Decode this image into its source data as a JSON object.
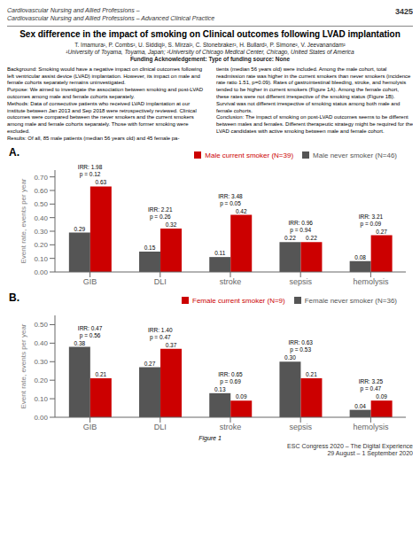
{
  "header": [
    "Cardiovascular Nursing and Allied Professions –",
    "Cardiovascular Nursing and Allied Professions – Advanced Clinical Practice",
    "3425"
  ],
  "title": "Sex difference in the impact of smoking on Clinical outcomes following LVAD implantation",
  "subtitle": [
    "T. Imamura¹, P. Combs², U. Siddiqi², S. Mirzai², C. Stonebraker², H. Bullard², P. Simone², V. Jeevanandam²",
    "¹University of Toyama, Toyama, Japan; ²University of Chicago Medical Center, Chicago, United States of America",
    "Funding Acknowledgement: Type of funding source: None"
  ],
  "body": [
    "Background: Smoking would have a negative impact on clinical outcomes following left ventricular assist device (LVAD) implantation. However, its impact on male and female cohorts separately remains uninvestigated.\nPurpose: We aimed to investigate the association between smoking and post-LVAD outcomes among male and female cohorts separately.\nMethods: Data of consecutive patients who received LVAD implantation at our institute between Jan 2013 and Sep 2018 were retrospectively reviewed. Clinical outcomes were compared between the never smokers and the current smokers among male and female cohorts separately. Those with former smoking were excluded.\nResults: Of all, 85 male patients (median 56 years old) and 45 female pa-",
    "tients (median 56 years old) were included. Among the male cohort, total readmission rate was higher in the current smokers than never smokers (incidence rate ratio 1.51, p=0.09). Rates of gastrointestinal bleeding, stroke, and hemolysis tended to be higher in current smokers (Figure 1A). Among the female cohort, these rates were not different irrespective of the smoking status (Figure 1B). Survival was not different irrespective of smoking status among both male and female cohorts.\nConclusion: The impact of smoking on post-LVAD outcomes seems to be different between males and females. Different therapeutic strategy might be required for the LVAD candidates with active smoking between male and female cohort."
  ],
  "caption": "Figure 1",
  "footer": [
    "ESC Congress 2020 – The Digital Experience",
    "29 August – 1 September 2020"
  ],
  "chart_data": [
    {
      "type": "bar",
      "title": "A.",
      "categories": [
        "GIB",
        "DLI",
        "stroke",
        "sepsis",
        "hemolysis"
      ],
      "series": [
        {
          "name": "Male never smoker (N=46)",
          "color": "#555555",
          "values": [
            0.29,
            0.15,
            0.11,
            0.22,
            0.08
          ],
          "value_labels": [
            "0.29",
            "0.15",
            "0.11",
            "0.22",
            "0.08"
          ]
        },
        {
          "name": "Male current smoker (N=39)",
          "color": "#cc0000",
          "values": [
            0.63,
            0.32,
            0.42,
            0.22,
            0.27
          ],
          "value_labels": [
            "0.63",
            "0.32",
            "0.42",
            "0.22",
            "0.27"
          ]
        }
      ],
      "annotations": [
        [
          "IRR: 1.98",
          "p = 0.12"
        ],
        [
          "IRR: 2.21",
          "p = 0.26"
        ],
        [
          "IRR: 3.48",
          "p = 0.05"
        ],
        [
          "IRR: 0.96",
          "p = 0.94"
        ],
        [
          "IRR: 3.21",
          "p = 0.09"
        ]
      ],
      "ylim": [
        0,
        0.75
      ],
      "yticks": [
        {
          "value": 0,
          "label": "0.00"
        },
        {
          "value": 0.1,
          "label": "0.10"
        },
        {
          "value": 0.2,
          "label": "0.20"
        },
        {
          "value": 0.3,
          "label": "0.30"
        },
        {
          "value": 0.4,
          "label": "0.40"
        },
        {
          "value": 0.5,
          "label": "0.50"
        },
        {
          "value": 0.6,
          "label": "0.60"
        },
        {
          "value": 0.7,
          "label": "0.70"
        }
      ],
      "ylabel": "Event rate, events per year",
      "legend": "upper right",
      "grid": false,
      "data_labels": true
    },
    {
      "type": "bar",
      "title": "B.",
      "categories": [
        "GIB",
        "DLI",
        "stroke",
        "sepsis",
        "hemolysis"
      ],
      "series": [
        {
          "name": "Female never smoker (N=36)",
          "color": "#555555",
          "values": [
            0.38,
            0.27,
            0.13,
            0.3,
            0.04
          ],
          "value_labels": [
            "0.38",
            "0.27",
            "0.13",
            "0.30",
            "0.04"
          ]
        },
        {
          "name": "Female current smoker (N=9)",
          "color": "#cc0000",
          "values": [
            0.21,
            0.37,
            0.09,
            0.21,
            0.09
          ],
          "value_labels": [
            "0.21",
            "0.37",
            "0.09",
            "0.21",
            "0.09"
          ]
        }
      ],
      "annotations": [
        [
          "IRR: 0.47",
          "p = 0.56"
        ],
        [
          "IRR: 1.40",
          "p = 0.47"
        ],
        [
          "IRR: 0.65",
          "p = 0.69"
        ],
        [
          "IRR: 0.63",
          "p = 0.53"
        ],
        [
          "IRR: 3.25",
          "p = 0.47"
        ]
      ],
      "ylim": [
        0,
        0.55
      ],
      "yticks": [
        {
          "value": 0,
          "label": "0.00"
        },
        {
          "value": 0.1,
          "label": "0.10"
        },
        {
          "value": 0.2,
          "label": "0.20"
        },
        {
          "value": 0.3,
          "label": "0.30"
        },
        {
          "value": 0.4,
          "label": "0.40"
        },
        {
          "value": 0.5,
          "label": "0.50"
        }
      ],
      "ylabel": "Event rate, events per year",
      "legend": "upper right",
      "grid": false,
      "data_labels": true
    }
  ]
}
